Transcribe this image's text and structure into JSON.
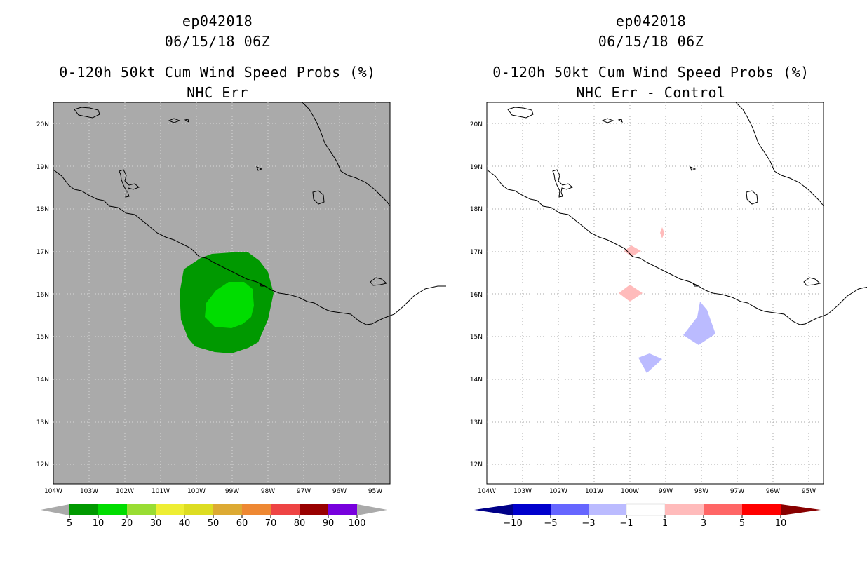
{
  "left_panel": {
    "storm_id": "ep042018",
    "datetime": "06/15/18 06Z",
    "product": "0-120h 50kt Cum Wind Speed Probs (%)",
    "subtitle": "NHC Err",
    "colorbar_labels": [
      "5",
      "10",
      "20",
      "30",
      "40",
      "50",
      "60",
      "70",
      "80",
      "90",
      "100"
    ],
    "colorbar_colors": [
      "#009900",
      "#00dd00",
      "#99dd33",
      "#eeee33",
      "#dddd22",
      "#ddaa33",
      "#ee8833",
      "#ee4444",
      "#990000",
      "#7700dd"
    ]
  },
  "right_panel": {
    "storm_id": "ep042018",
    "datetime": "06/15/18 06Z",
    "product": "0-120h 50kt Cum Wind Speed Probs (%)",
    "subtitle": "NHC Err - Control",
    "colorbar_labels": [
      "−10",
      "−5",
      "−3",
      "−1",
      "1",
      "3",
      "5",
      "10"
    ],
    "colorbar_colors": [
      "#0000cc",
      "#6666ff",
      "#bbbbff",
      "#ffffff",
      "#ffbbbb",
      "#ff6666",
      "#ff0000"
    ],
    "colorbar_end_colors": [
      "#000088",
      "#880000"
    ]
  },
  "axes": {
    "lat_labels": [
      "20N",
      "19N",
      "18N",
      "17N",
      "16N",
      "15N",
      "14N",
      "13N",
      "12N"
    ],
    "lon_labels": [
      "104W",
      "103W",
      "102W",
      "101W",
      "100W",
      "99W",
      "98W",
      "97W",
      "96W",
      "95W"
    ]
  },
  "colors": {
    "land_sea_gray": "#aaaaaa",
    "prob_5_10": "#009900",
    "prob_10_20": "#00dd00",
    "pos_diff": "#ffbbbb",
    "neg_diff": "#bbbbff"
  }
}
